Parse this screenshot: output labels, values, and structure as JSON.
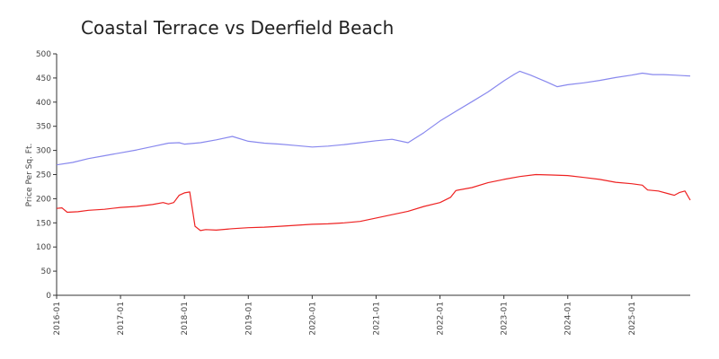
{
  "chart_data": {
    "type": "line",
    "title": "Coastal Terrace vs Deerfield Beach",
    "xlabel": "",
    "ylabel": "Price Per Sq. Ft.",
    "ylim": [
      0,
      500
    ],
    "yticks": [
      0,
      50,
      100,
      150,
      200,
      250,
      300,
      350,
      400,
      450,
      500
    ],
    "ytick_labels": [
      "0",
      "50",
      "100",
      "150",
      "200",
      "250",
      "300",
      "350",
      "400",
      "450",
      "500"
    ],
    "xlim": [
      "2016-01",
      "2025-12"
    ],
    "xtick_labels": [
      "2016-01",
      "2017-01",
      "2018-01",
      "2019-01",
      "2020-01",
      "2021-01",
      "2022-01",
      "2023-01",
      "2024-01",
      "2025-01"
    ],
    "grid": false,
    "legend": "none",
    "series": [
      {
        "color": "#8888ee",
        "points": [
          [
            "2016-01",
            270
          ],
          [
            "2016-04",
            275
          ],
          [
            "2016-07",
            283
          ],
          [
            "2016-10",
            289
          ],
          [
            "2017-01",
            295
          ],
          [
            "2017-04",
            301
          ],
          [
            "2017-07",
            308
          ],
          [
            "2017-10",
            315
          ],
          [
            "2017-12",
            316
          ],
          [
            "2018-01",
            313
          ],
          [
            "2018-04",
            316
          ],
          [
            "2018-07",
            322
          ],
          [
            "2018-10",
            329
          ],
          [
            "2019-01",
            319
          ],
          [
            "2019-04",
            315
          ],
          [
            "2019-07",
            313
          ],
          [
            "2019-10",
            310
          ],
          [
            "2020-01",
            307
          ],
          [
            "2020-04",
            309
          ],
          [
            "2020-07",
            312
          ],
          [
            "2020-10",
            316
          ],
          [
            "2021-01",
            320
          ],
          [
            "2021-04",
            323
          ],
          [
            "2021-07",
            316
          ],
          [
            "2021-10",
            337
          ],
          [
            "2022-01",
            361
          ],
          [
            "2022-04",
            381
          ],
          [
            "2022-07",
            401
          ],
          [
            "2022-10",
            421
          ],
          [
            "2023-01",
            444
          ],
          [
            "2023-03",
            458
          ],
          [
            "2023-04",
            464
          ],
          [
            "2023-06",
            456
          ],
          [
            "2023-09",
            442
          ],
          [
            "2023-11",
            432
          ],
          [
            "2024-01",
            436
          ],
          [
            "2024-04",
            440
          ],
          [
            "2024-07",
            445
          ],
          [
            "2024-10",
            451
          ],
          [
            "2025-01",
            456
          ],
          [
            "2025-03",
            460
          ],
          [
            "2025-05",
            457
          ],
          [
            "2025-07",
            457
          ],
          [
            "2025-09",
            456
          ],
          [
            "2025-12",
            454
          ]
        ]
      },
      {
        "color": "#ee2222",
        "points": [
          [
            "2016-01",
            180
          ],
          [
            "2016-02",
            181
          ],
          [
            "2016-03",
            172
          ],
          [
            "2016-05",
            173
          ],
          [
            "2016-07",
            176
          ],
          [
            "2016-10",
            178
          ],
          [
            "2017-01",
            182
          ],
          [
            "2017-04",
            184
          ],
          [
            "2017-07",
            188
          ],
          [
            "2017-09",
            192
          ],
          [
            "2017-10",
            189
          ],
          [
            "2017-11",
            192
          ],
          [
            "2017-12",
            207
          ],
          [
            "2018-01",
            212
          ],
          [
            "2018-02",
            214
          ],
          [
            "2018-03",
            143
          ],
          [
            "2018-04",
            134
          ],
          [
            "2018-05",
            136
          ],
          [
            "2018-07",
            135
          ],
          [
            "2018-10",
            138
          ],
          [
            "2019-01",
            140
          ],
          [
            "2019-04",
            141
          ],
          [
            "2019-07",
            143
          ],
          [
            "2019-10",
            145
          ],
          [
            "2020-01",
            147
          ],
          [
            "2020-04",
            148
          ],
          [
            "2020-07",
            150
          ],
          [
            "2020-10",
            153
          ],
          [
            "2021-01",
            160
          ],
          [
            "2021-04",
            167
          ],
          [
            "2021-07",
            174
          ],
          [
            "2021-10",
            184
          ],
          [
            "2022-01",
            192
          ],
          [
            "2022-03",
            203
          ],
          [
            "2022-04",
            217
          ],
          [
            "2022-07",
            223
          ],
          [
            "2022-10",
            233
          ],
          [
            "2023-01",
            240
          ],
          [
            "2023-04",
            246
          ],
          [
            "2023-07",
            250
          ],
          [
            "2023-10",
            249
          ],
          [
            "2024-01",
            248
          ],
          [
            "2024-04",
            244
          ],
          [
            "2024-07",
            240
          ],
          [
            "2024-10",
            234
          ],
          [
            "2025-01",
            231
          ],
          [
            "2025-03",
            228
          ],
          [
            "2025-04",
            218
          ],
          [
            "2025-06",
            216
          ],
          [
            "2025-08",
            210
          ],
          [
            "2025-09",
            207
          ],
          [
            "2025-10",
            213
          ],
          [
            "2025-11",
            216
          ],
          [
            "2025-12",
            197
          ]
        ]
      }
    ]
  }
}
